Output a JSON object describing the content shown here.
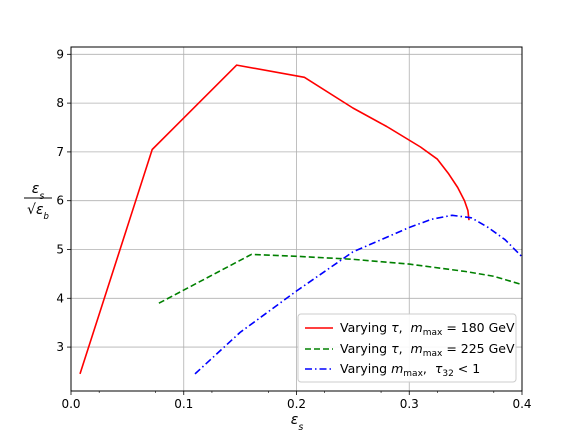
{
  "chart_data": {
    "type": "line",
    "xlabel_base": "ε",
    "xlabel_sub": "s",
    "ylabel_num_base": "ε",
    "ylabel_num_sub": "s",
    "ylabel_den_base": "√ε",
    "ylabel_den_sub": "b",
    "xlim": [
      0.0,
      0.4
    ],
    "ylim": [
      2.1,
      9.15
    ],
    "x_ticks": [
      0.0,
      0.1,
      0.2,
      0.3,
      0.4
    ],
    "x_tick_labels": [
      "0.0",
      "0.1",
      "0.2",
      "0.3",
      "0.4"
    ],
    "y_ticks": [
      3,
      4,
      5,
      6,
      7,
      8,
      9
    ],
    "y_tick_labels": [
      "3",
      "4",
      "5",
      "6",
      "7",
      "8",
      "9"
    ],
    "grid": true,
    "legend_position": "lower-right",
    "series": [
      {
        "name": "Varying τ,  m_max = 180 GeV",
        "legend_label": {
          "a": "Varying ",
          "tau": "τ",
          "b": ",  ",
          "m": "m",
          "msub": "max",
          "c": " = 180 GeV"
        },
        "color": "#ff0000",
        "dash": "solid",
        "x": [
          0.008,
          0.072,
          0.147,
          0.207,
          0.25,
          0.28,
          0.31,
          0.325,
          0.335,
          0.343,
          0.349,
          0.352,
          0.353
        ],
        "y": [
          2.45,
          7.05,
          8.78,
          8.53,
          7.9,
          7.52,
          7.1,
          6.85,
          6.55,
          6.27,
          6.0,
          5.8,
          5.6
        ]
      },
      {
        "name": "Varying τ,  m_max = 225 GeV",
        "legend_label": {
          "a": "Varying ",
          "tau": "τ",
          "b": ",  ",
          "m": "m",
          "msub": "max",
          "c": " = 225 GeV"
        },
        "color": "#008000",
        "dash": "dashed",
        "x": [
          0.078,
          0.16,
          0.2,
          0.25,
          0.3,
          0.35,
          0.375,
          0.4
        ],
        "y": [
          3.9,
          4.9,
          4.86,
          4.8,
          4.7,
          4.55,
          4.45,
          4.28
        ]
      },
      {
        "name": "Varying m_max,  τ32 < 1",
        "legend_label": {
          "a": "Varying ",
          "m": "m",
          "msub": "max",
          "b": ",  ",
          "tau": "τ",
          "tausub": "32",
          "c": " < 1"
        },
        "color": "#0000ff",
        "dash": "dashdot",
        "x": [
          0.11,
          0.15,
          0.2,
          0.25,
          0.275,
          0.3,
          0.32,
          0.338,
          0.355,
          0.37,
          0.385,
          0.4
        ],
        "y": [
          2.45,
          3.3,
          4.15,
          4.95,
          5.2,
          5.45,
          5.62,
          5.7,
          5.65,
          5.45,
          5.2,
          4.85
        ]
      }
    ]
  }
}
